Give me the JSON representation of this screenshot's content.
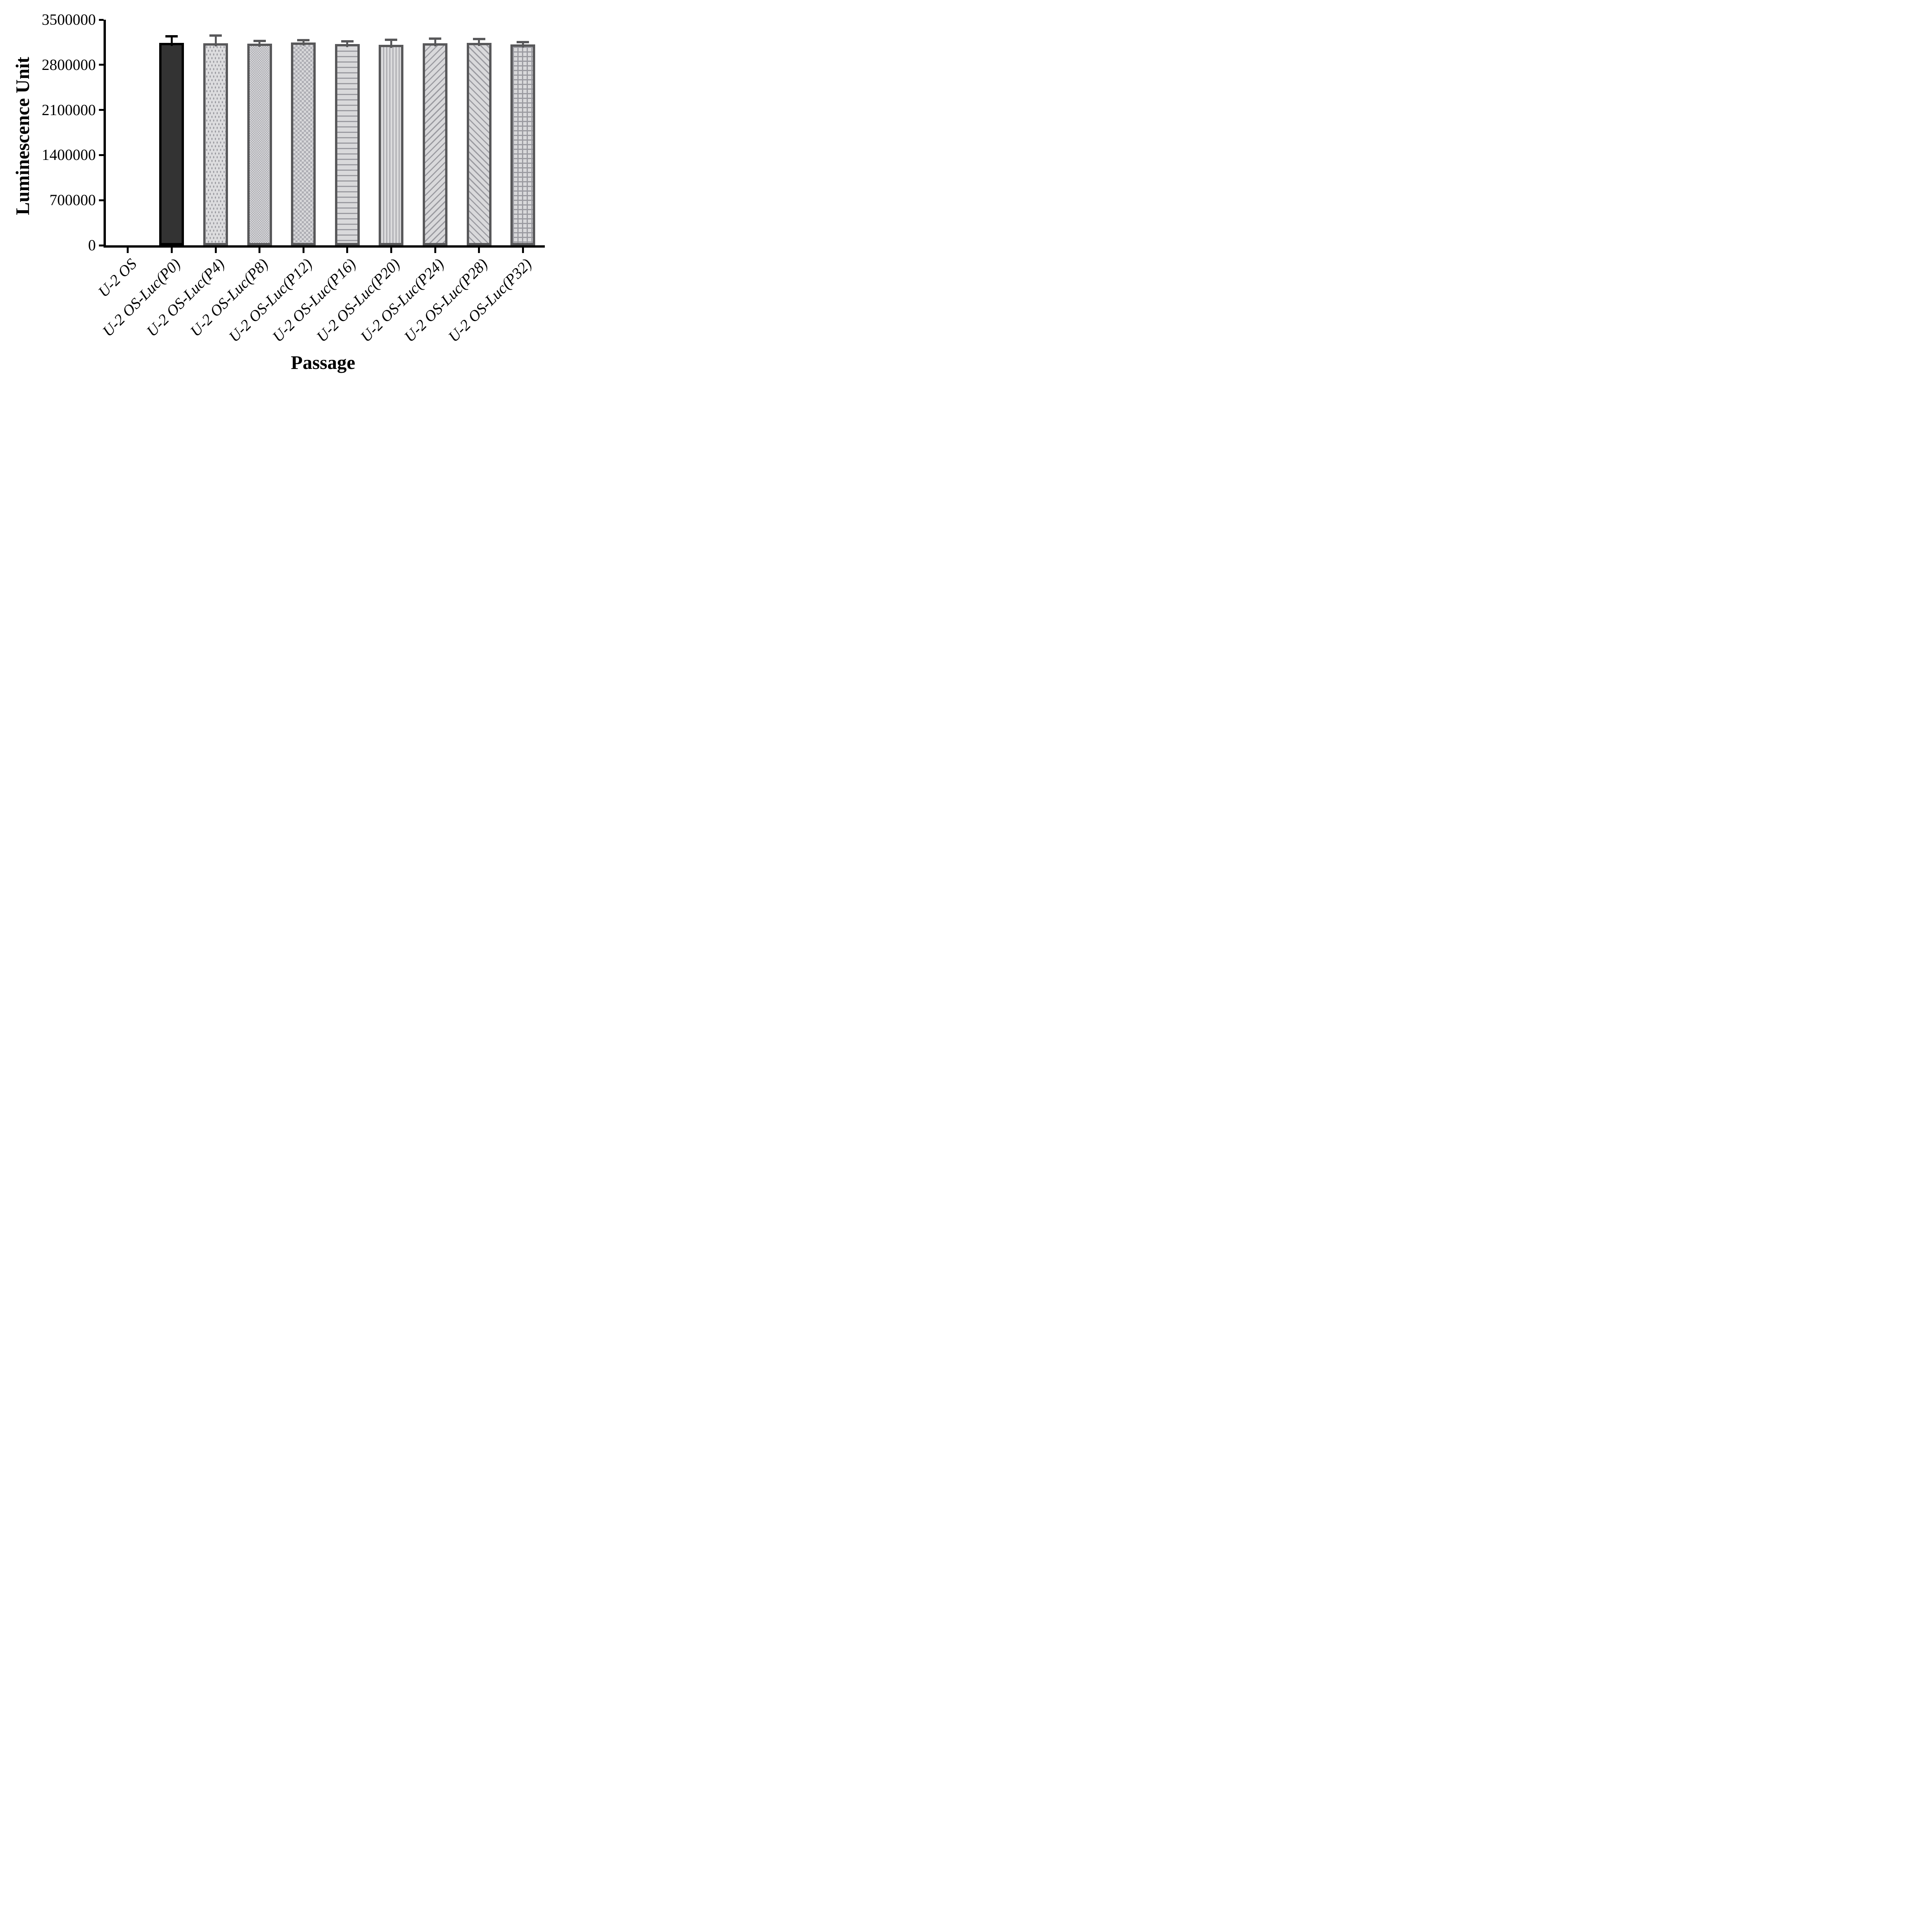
{
  "chart_data": {
    "type": "bar",
    "title": "",
    "xlabel": "Passage",
    "ylabel": "Luminescence Unit",
    "categories": [
      "U-2 OS",
      "U-2 OS-Luc(P0)",
      "U-2 OS-Luc(P4)",
      "U-2 OS-Luc(P8)",
      "U-2 OS-Luc(P12)",
      "U-2 OS-Luc(P16)",
      "U-2 OS-Luc(P20)",
      "U-2 OS-Luc(P24)",
      "U-2 OS-Luc(P28)",
      "U-2 OS-Luc(P32)"
    ],
    "values": [
      0,
      3140000,
      3135000,
      3130000,
      3145000,
      3125000,
      3110000,
      3135000,
      3140000,
      3115000
    ],
    "errors_plus": [
      0,
      120000,
      135000,
      60000,
      55000,
      60000,
      95000,
      90000,
      80000,
      55000
    ],
    "ylim": [
      0,
      3500000
    ],
    "y_ticks": [
      0,
      700000,
      1400000,
      2100000,
      2800000,
      3500000
    ],
    "y_tick_labels": [
      "0",
      "700000",
      "1400000",
      "2100000",
      "2800000",
      "3500000"
    ],
    "grid": false,
    "legend_position": "none",
    "patterns": [
      "none",
      "solid-dark",
      "dots",
      "checker-small",
      "checker-large",
      "horizontal-lines",
      "vertical-lines",
      "diagonal-up-lines",
      "diagonal-down-lines",
      "grid-lines"
    ],
    "colors": {
      "solid_bar_fill": "#333333",
      "solid_bar_border": "#000000",
      "pattern_bar_fill": "#d9d9db",
      "pattern_bar_border": "#58585a",
      "pattern_line": "#9a9aa0",
      "error_bar_first": "#000000",
      "error_bar_rest": "#58585a",
      "axis": "#000000"
    },
    "error_colors": [
      "#000000",
      "#000000",
      "#58585a",
      "#58585a",
      "#58585a",
      "#58585a",
      "#58585a",
      "#58585a",
      "#58585a",
      "#58585a"
    ]
  }
}
